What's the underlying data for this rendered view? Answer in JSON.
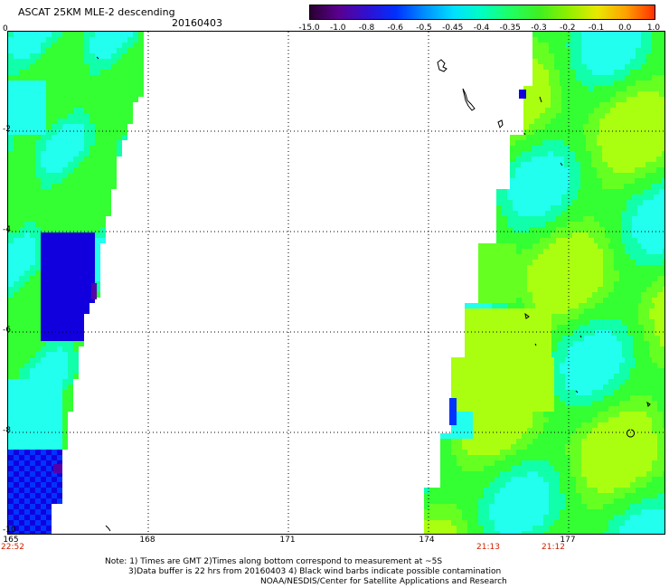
{
  "header": {
    "title": "ASCAT 25KM MLE-2 descending",
    "date": "20160403"
  },
  "colorbar": {
    "labels": [
      "-15.0",
      "-1.0",
      "-0.8",
      "-0.6",
      "-0.5",
      "-0.45",
      "-0.4",
      "-0.35",
      "-0.3",
      "-0.2",
      "-0.1",
      "0.0",
      "1.0"
    ],
    "colors": [
      "#2a0030",
      "#5a0090",
      "#3010d0",
      "#0030ff",
      "#0090ff",
      "#00e0ff",
      "#00ffc0",
      "#20ff60",
      "#40f020",
      "#90f000",
      "#e8e800",
      "#ffa000",
      "#ff3000"
    ]
  },
  "map": {
    "lon_range": [
      165,
      179.2
    ],
    "lat_range": [
      -10,
      0
    ],
    "x_ticks": [
      "165",
      "168",
      "171",
      "174",
      "177"
    ],
    "y_ticks": [
      "0",
      "-2",
      "-4",
      "-6",
      "-8",
      "-10"
    ],
    "time_labels": [
      "22:52",
      "21:13",
      "21:12"
    ],
    "colors": {
      "green": "#33ff33",
      "light_green": "#66ff22",
      "yellow_green": "#aaff11",
      "cyan": "#22ffee",
      "aqua": "#11ffaa",
      "blue": "#0033ff",
      "deep_blue": "#1100dd",
      "purple": "#5500aa",
      "grid": "#000000"
    }
  },
  "notes": {
    "line1": "Note: 1) Times are GMT 2)Times along bottom correspond to measurement at ~5S",
    "line2": "3)Data buffer is 22 hrs from 20160403 4) Black wind barbs indicate possible contamination",
    "line3": "NOAA/NESDIS/Center for Satellite Applications and Research"
  }
}
